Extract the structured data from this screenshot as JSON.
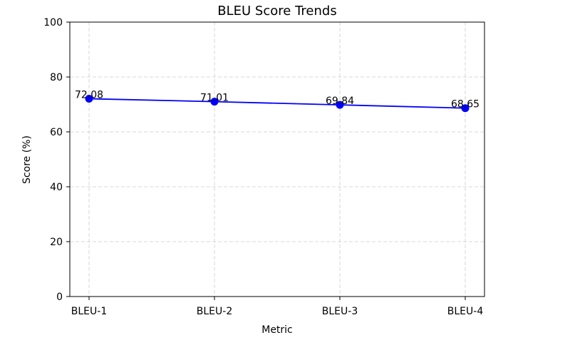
{
  "chart_data": {
    "type": "line",
    "title": "BLEU Score Trends",
    "xlabel": "Metric",
    "ylabel": "Score (%)",
    "categories": [
      "BLEU-1",
      "BLEU-2",
      "BLEU-3",
      "BLEU-4"
    ],
    "series": [
      {
        "values": [
          72.08,
          71.01,
          69.84,
          68.65
        ],
        "color": "#0000ff"
      }
    ],
    "data_labels": [
      "72.08",
      "71.01",
      "69.84",
      "68.65"
    ],
    "ylim": [
      0,
      100
    ],
    "yticks": [
      0,
      20,
      40,
      60,
      80,
      100
    ],
    "grid": true,
    "grid_style": "dashed",
    "grid_color": "#cccccc",
    "legend": "none"
  }
}
